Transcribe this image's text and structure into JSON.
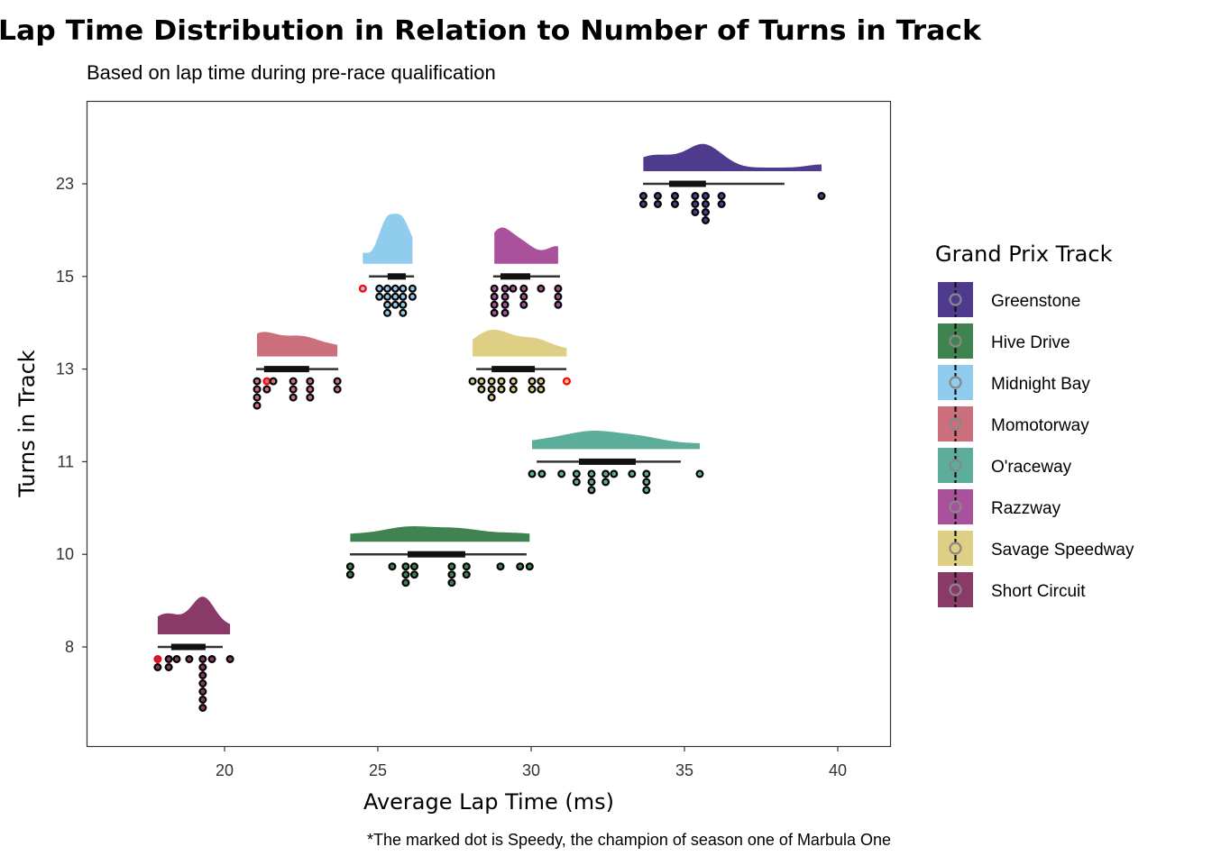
{
  "chart_data": {
    "type": "raincloud",
    "title": "Lap Time Distribution in Relation to Number of Turns in Track",
    "subtitle": "Based on lap time during pre-race qualification",
    "xlabel": "Average Lap Time (ms)",
    "ylabel": "Turns in Track",
    "caption": "*The marked dot is Speedy, the champion of season one of Marbula One",
    "xlim": [
      15.5,
      41.75
    ],
    "xticks": [
      20,
      25,
      30,
      35,
      40
    ],
    "yticks": [
      "8",
      "10",
      "11",
      "13",
      "15",
      "23"
    ],
    "grid": false,
    "legend": {
      "title": "Grand Prix Track",
      "position": "right"
    },
    "highlight_color": "#FF0000",
    "groups": [
      {
        "name": "Short Circuit",
        "turns": "8",
        "color": "#8A3A68",
        "tracks": "1",
        "box": {
          "whisker_low": 17.82,
          "q1": 18.26,
          "q3": 19.38,
          "whisker_high": 19.94
        },
        "columns": [
          {
            "x": 17.82,
            "n": 2,
            "speedy": true
          },
          {
            "x": 18.18,
            "n": 2
          },
          {
            "x": 18.44,
            "n": 1
          },
          {
            "x": 18.85,
            "n": 1
          },
          {
            "x": 19.29,
            "n": 7
          },
          {
            "x": 19.59,
            "n": 1
          },
          {
            "x": 20.18,
            "n": 1
          }
        ]
      },
      {
        "name": "Hive Drive",
        "turns": "10",
        "color": "#3F8450",
        "box": {
          "whisker_low": 24.09,
          "q1": 25.97,
          "q3": 27.85,
          "whisker_high": 29.85
        },
        "columns": [
          {
            "x": 24.1,
            "n": 2
          },
          {
            "x": 25.47,
            "n": 1
          },
          {
            "x": 25.91,
            "n": 3
          },
          {
            "x": 26.19,
            "n": 2
          },
          {
            "x": 27.41,
            "n": 3
          },
          {
            "x": 27.89,
            "n": 2
          },
          {
            "x": 29.0,
            "n": 1
          },
          {
            "x": 29.64,
            "n": 1
          },
          {
            "x": 29.95,
            "n": 1
          }
        ]
      },
      {
        "name": "O'raceway",
        "turns": "11",
        "color": "#5CAD9A",
        "box": {
          "whisker_low": 30.18,
          "q1": 31.56,
          "q3": 33.41,
          "whisker_high": 34.88
        },
        "columns": [
          {
            "x": 30.03,
            "n": 1
          },
          {
            "x": 30.35,
            "n": 1
          },
          {
            "x": 30.99,
            "n": 1
          },
          {
            "x": 31.48,
            "n": 2
          },
          {
            "x": 31.97,
            "n": 3
          },
          {
            "x": 32.43,
            "n": 2
          },
          {
            "x": 32.7,
            "n": 1
          },
          {
            "x": 33.29,
            "n": 1
          },
          {
            "x": 33.76,
            "n": 3
          },
          {
            "x": 35.5,
            "n": 1
          }
        ]
      },
      {
        "name": "Momotorway",
        "turns": "13",
        "color": "#CC6F7D",
        "box": {
          "whisker_low": 21.03,
          "q1": 21.29,
          "q3": 22.76,
          "whisker_high": 23.71
        },
        "columns": [
          {
            "x": 21.06,
            "n": 4
          },
          {
            "x": 21.38,
            "n": 2,
            "speedy": true
          },
          {
            "x": 21.59,
            "n": 1
          },
          {
            "x": 22.24,
            "n": 3
          },
          {
            "x": 22.79,
            "n": 3
          },
          {
            "x": 23.68,
            "n": 2
          }
        ]
      },
      {
        "name": "Savage Speedway",
        "turns": "13",
        "color": "#DFCF84",
        "box": {
          "whisker_low": 28.21,
          "q1": 28.71,
          "q3": 30.12,
          "whisker_high": 31.15
        },
        "columns": [
          {
            "x": 28.09,
            "n": 1
          },
          {
            "x": 28.38,
            "n": 2
          },
          {
            "x": 28.71,
            "n": 3
          },
          {
            "x": 29.03,
            "n": 2
          },
          {
            "x": 29.42,
            "n": 2
          },
          {
            "x": 30.03,
            "n": 2
          },
          {
            "x": 30.32,
            "n": 2
          },
          {
            "x": 31.16,
            "n": 1,
            "speedy": true
          }
        ]
      },
      {
        "name": "Midnight Bay",
        "turns": "15",
        "color": "#90CCEE",
        "box": {
          "whisker_low": 24.71,
          "q1": 25.32,
          "q3": 25.91,
          "whisker_high": 26.18
        },
        "columns": [
          {
            "x": 24.51,
            "n": 1,
            "speedy": true
          },
          {
            "x": 25.05,
            "n": 2
          },
          {
            "x": 25.31,
            "n": 4
          },
          {
            "x": 25.57,
            "n": 3
          },
          {
            "x": 25.82,
            "n": 4
          },
          {
            "x": 26.13,
            "n": 2
          }
        ]
      },
      {
        "name": "Razzway",
        "turns": "15",
        "color": "#A9529B",
        "box": {
          "whisker_low": 28.76,
          "q1": 29.0,
          "q3": 29.97,
          "whisker_high": 30.94
        },
        "columns": [
          {
            "x": 28.8,
            "n": 4
          },
          {
            "x": 29.15,
            "n": 4
          },
          {
            "x": 29.41,
            "n": 1
          },
          {
            "x": 29.76,
            "n": 3
          },
          {
            "x": 30.32,
            "n": 1
          },
          {
            "x": 30.88,
            "n": 3
          }
        ]
      },
      {
        "name": "Greenstone",
        "turns": "23",
        "color": "#4E3B8E",
        "box": {
          "whisker_low": 33.65,
          "q1": 34.5,
          "q3": 35.7,
          "whisker_high": 38.26
        },
        "columns": [
          {
            "x": 33.66,
            "n": 2
          },
          {
            "x": 34.13,
            "n": 2
          },
          {
            "x": 34.69,
            "n": 2
          },
          {
            "x": 35.35,
            "n": 3
          },
          {
            "x": 35.69,
            "n": 4
          },
          {
            "x": 36.21,
            "n": 2
          },
          {
            "x": 39.47,
            "n": 1
          }
        ]
      }
    ],
    "legend_order": [
      "Greenstone",
      "Hive Drive",
      "Midnight Bay",
      "Momotorway",
      "O'raceway",
      "Razzway",
      "Savage Speedway",
      "Short Circuit"
    ]
  }
}
